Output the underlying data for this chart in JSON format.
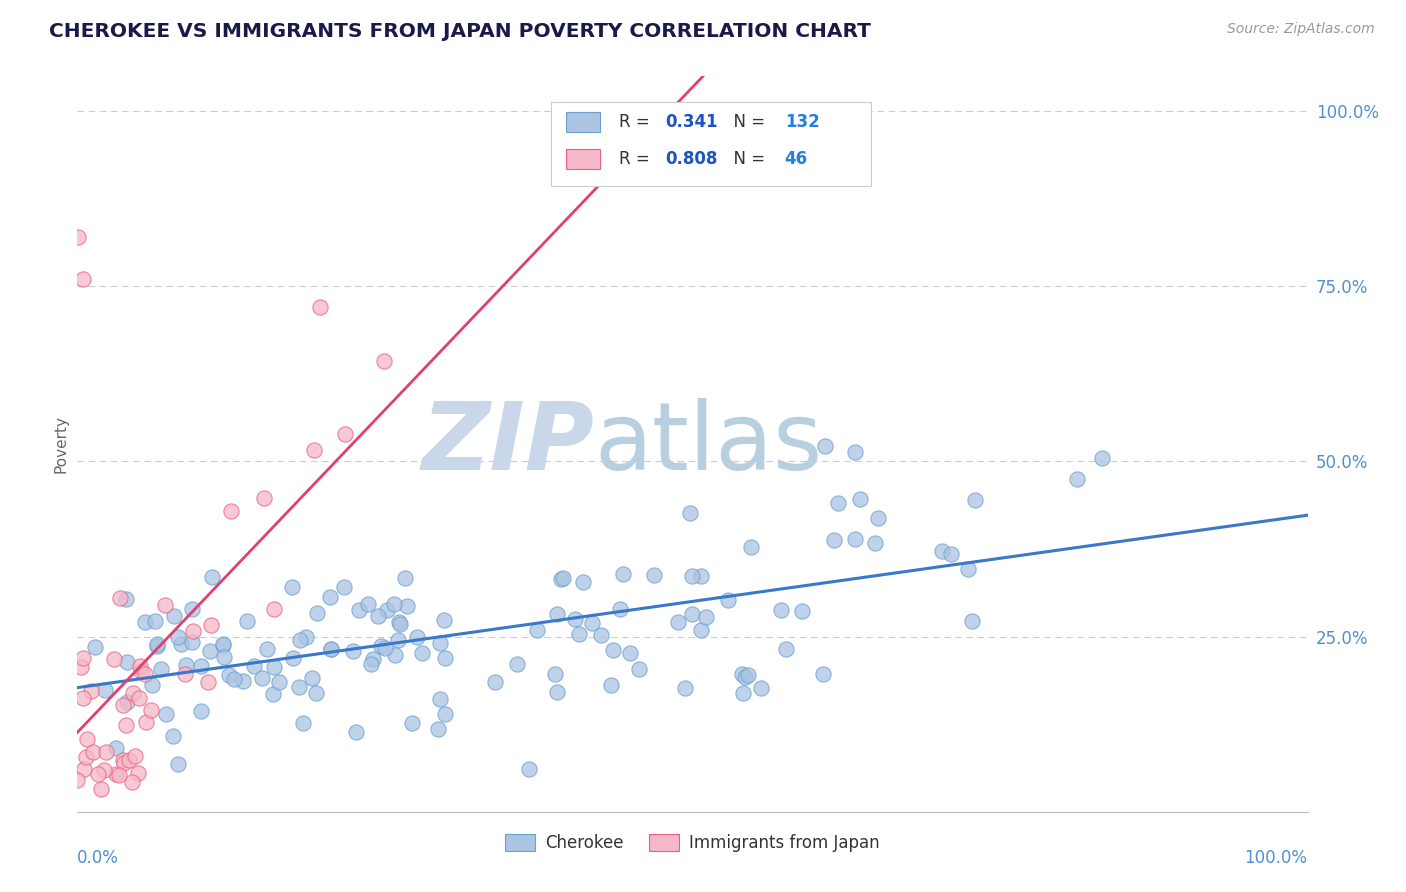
{
  "title": "CHEROKEE VS IMMIGRANTS FROM JAPAN POVERTY CORRELATION CHART",
  "source_text": "Source: ZipAtlas.com",
  "ylabel": "Poverty",
  "cherokee_R": 0.341,
  "cherokee_N": 132,
  "japan_R": 0.808,
  "japan_N": 46,
  "cherokee_color": "#aac4e2",
  "cherokee_edge_color": "#6aa0d0",
  "cherokee_line_color": "#3a78c9",
  "japan_color": "#f5b8c8",
  "japan_edge_color": "#e86080",
  "japan_line_color": "#e04070",
  "legend_r_color": "#1a55c0",
  "legend_n_color": "#2080e0",
  "background_color": "#ffffff",
  "grid_color": "#cccccc",
  "watermark_zip_color": "#c8d8ea",
  "watermark_atlas_color": "#b8cfe0",
  "tick_color": "#5090d0",
  "x_range": [
    0.0,
    1.0
  ],
  "y_range": [
    0.0,
    1.05
  ]
}
